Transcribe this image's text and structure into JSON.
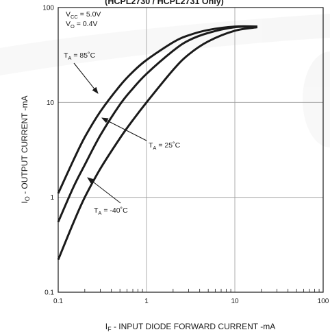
{
  "chart_data": {
    "type": "line",
    "title": "(HCPL2730 / HCPL2731 Only)",
    "xlabel": "I_F - INPUT DIODE FORWARD CURRENT -mA",
    "ylabel": "I_O - OUTPUT CURRENT -mA",
    "xscale": "log",
    "yscale": "log",
    "xlim": [
      0.1,
      100
    ],
    "ylim": [
      0.1,
      100
    ],
    "x_ticks": [
      "0.1",
      "1",
      "10",
      "100"
    ],
    "y_ticks": [
      "0.1",
      "1",
      "10",
      "100"
    ],
    "grid": true,
    "conditions": [
      {
        "name": "V",
        "sub": "CC",
        "value": " = 5.0V"
      },
      {
        "name": "V",
        "sub": "O",
        "value": " = 0.4V"
      }
    ],
    "series": [
      {
        "name": "T_A = 85°C",
        "label_main": "T",
        "label_sub": "A",
        "label_rest": " = 85˚C",
        "x": [
          0.1,
          0.15,
          0.2,
          0.3,
          0.5,
          0.7,
          1,
          2,
          3,
          5,
          10,
          18
        ],
        "y": [
          1.1,
          2.5,
          4.3,
          8,
          15,
          21,
          28,
          43,
          51,
          58,
          63,
          63
        ]
      },
      {
        "name": "T_A = 25°C",
        "label_main": "T",
        "label_sub": "A",
        "label_rest": " = 25˚C",
        "x": [
          0.1,
          0.15,
          0.2,
          0.3,
          0.5,
          0.7,
          1,
          2,
          3,
          5,
          10,
          18
        ],
        "y": [
          0.55,
          1.3,
          2.2,
          4.5,
          9.5,
          14,
          20,
          35,
          45,
          54,
          62,
          63
        ]
      },
      {
        "name": "T_A = -40°C",
        "label_main": "T",
        "label_sub": "A",
        "label_rest": " = -40˚C",
        "x": [
          0.1,
          0.15,
          0.2,
          0.3,
          0.5,
          0.7,
          1,
          2,
          3,
          5,
          10,
          18
        ],
        "y": [
          0.22,
          0.55,
          1.0,
          2.0,
          4.2,
          6.5,
          10,
          22,
          32,
          44,
          57,
          62
        ]
      }
    ]
  }
}
